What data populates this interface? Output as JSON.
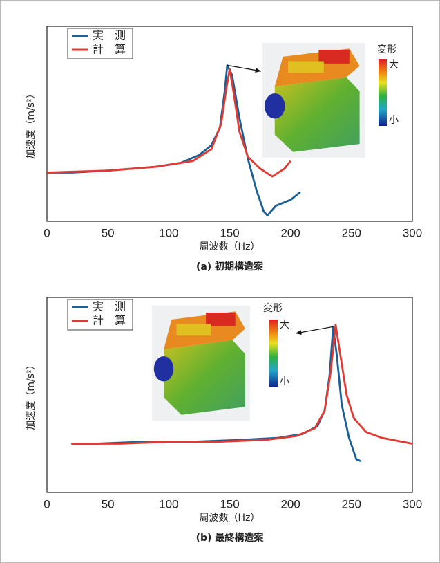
{
  "chart_data": [
    {
      "type": "line",
      "caption": "(a) 初期構造案",
      "xlabel": "周波数（Hz）",
      "ylabel": "加速度（m/s²）",
      "xlim": [
        0,
        300
      ],
      "xticks": [
        0,
        50,
        100,
        150,
        200,
        250,
        300
      ],
      "ylim": [
        0,
        100
      ],
      "colorbar_title": "変形",
      "colorbar_max": "大",
      "colorbar_min": "小",
      "series": [
        {
          "name": "実　測",
          "color": "#1b5f97",
          "x": [
            0,
            20,
            50,
            70,
            90,
            110,
            125,
            135,
            142,
            146,
            148,
            152,
            158,
            165,
            172,
            178,
            181,
            188,
            200,
            208
          ],
          "values": [
            25,
            25,
            26,
            27,
            28,
            30,
            34,
            39,
            48,
            67,
            80,
            75,
            53,
            32,
            16,
            5,
            3,
            8,
            11,
            15
          ]
        },
        {
          "name": "計　算",
          "color": "#e23a32",
          "x": [
            0,
            50,
            90,
            120,
            135,
            143,
            147,
            150,
            153,
            158,
            165,
            175,
            185,
            195,
            200
          ],
          "values": [
            25,
            26,
            28,
            31,
            37,
            50,
            67,
            78,
            67,
            46,
            33,
            27,
            23,
            27,
            31
          ]
        }
      ]
    },
    {
      "type": "line",
      "caption": "(b) 最終構造案",
      "xlabel": "周波数（Hz）",
      "ylabel": "加速度（m/s²）",
      "xlim": [
        0,
        300
      ],
      "xticks": [
        0,
        50,
        100,
        150,
        200,
        250,
        300
      ],
      "ylim": [
        0,
        100
      ],
      "colorbar_title": "変形",
      "colorbar_max": "大",
      "colorbar_min": "小",
      "series": [
        {
          "name": "実　測",
          "color": "#1b5f97",
          "x": [
            20,
            40,
            80,
            120,
            160,
            190,
            210,
            222,
            228,
            232,
            235,
            238,
            242,
            248,
            254,
            258
          ],
          "values": [
            25,
            25,
            26,
            26,
            27,
            28,
            30,
            34,
            42,
            60,
            85,
            70,
            45,
            28,
            17,
            16
          ]
        },
        {
          "name": "計　算",
          "color": "#e23a32",
          "x": [
            20,
            60,
            100,
            140,
            180,
            205,
            220,
            228,
            233,
            237,
            241,
            246,
            252,
            262,
            275,
            300
          ],
          "values": [
            25,
            25,
            26,
            26,
            27,
            29,
            33,
            42,
            62,
            86,
            70,
            50,
            38,
            31,
            28,
            25
          ]
        }
      ]
    }
  ]
}
